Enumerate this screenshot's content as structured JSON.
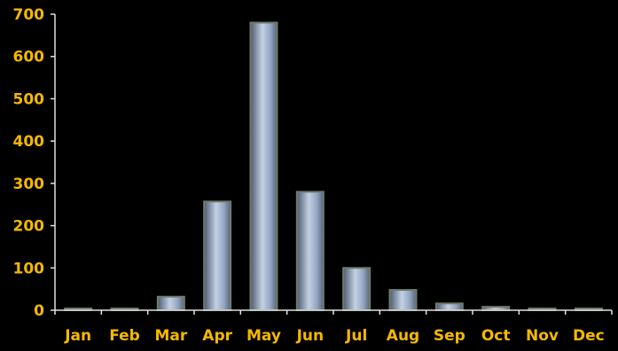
{
  "chart_data": {
    "type": "bar",
    "title": "",
    "xlabel": "",
    "ylabel": "",
    "categories": [
      "Jan",
      "Feb",
      "Mar",
      "Apr",
      "May",
      "Jun",
      "Jul",
      "Aug",
      "Sep",
      "Oct",
      "Nov",
      "Dec"
    ],
    "values": [
      4,
      2,
      32,
      257,
      680,
      280,
      100,
      48,
      16,
      8,
      2,
      3
    ],
    "ylim": [
      0,
      700
    ],
    "yticks": [
      0,
      100,
      200,
      300,
      400,
      500,
      600,
      700
    ],
    "ytick_labels": [
      "0",
      "100",
      "200",
      "300",
      "400",
      "500",
      "600",
      "700"
    ],
    "grid": false,
    "legend": "none",
    "colors": {
      "background": "#000000",
      "axis": "#e0e0e0",
      "tick_label": "#f5b800",
      "bar_light": "#c4d0e4",
      "bar_mid": "#94a6c2",
      "bar_dark": "#4c5a70",
      "bar_edge": "#6e7c6a"
    }
  }
}
